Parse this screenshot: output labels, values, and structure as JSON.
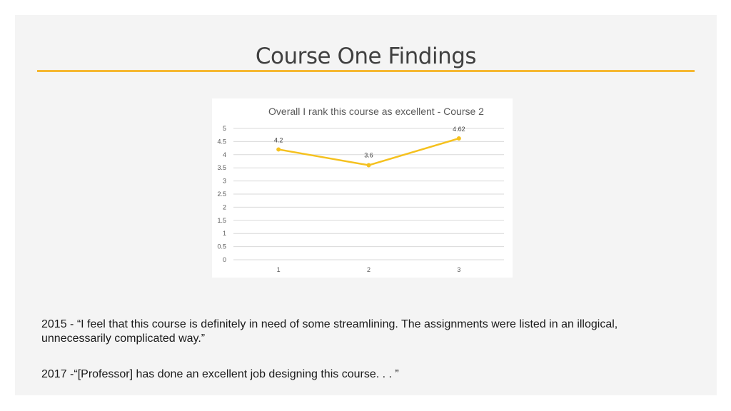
{
  "slide": {
    "title": "Course One Findings",
    "accent_color": "#f5b731"
  },
  "quotes": [
    "2015 - “I feel that this course is definitely in need of some streamlining. The assignments were listed in an illogical, unnecessarily complicated way.”",
    "2017 -“[Professor] has done an excellent job designing this course. . . ”"
  ],
  "chart_data": {
    "type": "line",
    "title": "Overall I rank this course as excellent  - Course 2",
    "categories": [
      "1",
      "2",
      "3"
    ],
    "series": [
      {
        "values": [
          4.2,
          3.6,
          4.62
        ],
        "color": "#f5c11e"
      }
    ],
    "data_labels": [
      "4.2",
      "3.6",
      "4.62"
    ],
    "y_ticks": [
      "0",
      "0.5",
      "1",
      "1.5",
      "2",
      "2.5",
      "3",
      "3.5",
      "4",
      "4.5",
      "5"
    ],
    "ylim": [
      0,
      5
    ],
    "xlabel": "",
    "ylabel": "",
    "grid": true,
    "legend": "none"
  }
}
